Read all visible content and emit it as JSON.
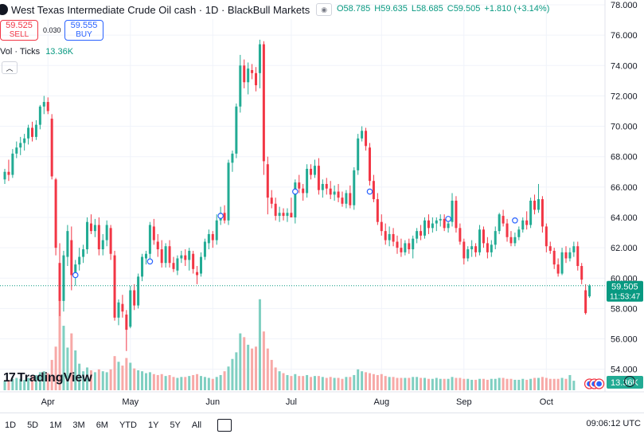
{
  "header": {
    "title": "West Texas Intermediate Crude Oil cash · 1D · BlackBull Markets",
    "ohlc": {
      "open": "O58.785",
      "high": "H59.635",
      "low": "L58.685",
      "close": "C59.505",
      "change": "+1.810 (+3.14%)"
    }
  },
  "trade": {
    "sell_price": "59.525",
    "sell_label": "SELL",
    "spread": "0.030",
    "buy_price": "59.555",
    "buy_label": "BUY"
  },
  "volume_legend": {
    "label": "Vol · Ticks",
    "value": "13.36K"
  },
  "price_badge": {
    "price": "59.505",
    "countdown": "11:53:47"
  },
  "volume_badge": "13.36K",
  "logo_text": "TradingView",
  "ranges": [
    "1D",
    "5D",
    "1M",
    "3M",
    "6M",
    "YTD",
    "1Y",
    "5Y",
    "All"
  ],
  "clock": "09:06:12 UTC",
  "colors": {
    "up": "#22ab94",
    "down": "#f23645",
    "up_vol": "#7fcfc1",
    "down_vol": "#f7a9a7",
    "last_line": "#089981"
  },
  "chart_data": {
    "type": "candlestick",
    "y_ticks": [
      "54.000",
      "56.000",
      "58.000",
      "60.000",
      "62.000",
      "64.000",
      "66.000",
      "68.000",
      "70.000",
      "72.000",
      "74.000",
      "76.000",
      "78.000"
    ],
    "ylim": [
      53.5,
      78.0
    ],
    "x_ticks": [
      {
        "label": "Apr",
        "i": 11
      },
      {
        "label": "May",
        "i": 32
      },
      {
        "label": "Jun",
        "i": 53
      },
      {
        "label": "Jul",
        "i": 73
      },
      {
        "label": "Aug",
        "i": 96
      },
      {
        "label": "Sep",
        "i": 117
      },
      {
        "label": "Oct",
        "i": 138
      }
    ],
    "last_price": 59.505,
    "candles": [
      [
        66.5,
        67.2,
        66.2,
        67.0
      ],
      [
        67.0,
        67.8,
        66.4,
        66.8
      ],
      [
        66.8,
        68.5,
        66.6,
        68.2
      ],
      [
        68.2,
        69.0,
        67.9,
        68.6
      ],
      [
        68.6,
        69.3,
        68.1,
        68.9
      ],
      [
        68.9,
        69.5,
        68.4,
        69.2
      ],
      [
        69.2,
        70.1,
        68.8,
        69.9
      ],
      [
        69.9,
        70.3,
        69.0,
        69.3
      ],
      [
        69.3,
        70.4,
        69.1,
        70.1
      ],
      [
        70.1,
        71.4,
        69.8,
        71.3
      ],
      [
        71.3,
        72.0,
        70.8,
        71.6
      ],
      [
        71.6,
        71.9,
        70.8,
        71.0
      ],
      [
        70.5,
        70.8,
        66.5,
        66.7
      ],
      [
        66.5,
        66.6,
        61.5,
        62.0
      ],
      [
        61.0,
        62.3,
        57.5,
        58.5
      ],
      [
        58.5,
        61.8,
        57.8,
        61.5
      ],
      [
        61.4,
        63.5,
        60.8,
        63.1
      ],
      [
        62.5,
        63.4,
        59.2,
        60.2
      ],
      [
        60.2,
        61.2,
        59.5,
        60.9
      ],
      [
        60.9,
        62.0,
        60.5,
        61.4
      ],
      [
        61.4,
        62.2,
        61.0,
        61.9
      ],
      [
        61.9,
        64.0,
        61.6,
        63.7
      ],
      [
        63.6,
        64.2,
        62.9,
        63.1
      ],
      [
        63.1,
        63.9,
        62.7,
        63.5
      ],
      [
        63.5,
        64.0,
        61.5,
        61.9
      ],
      [
        61.9,
        62.9,
        61.5,
        62.5
      ],
      [
        62.5,
        63.8,
        62.1,
        63.5
      ],
      [
        63.3,
        63.5,
        61.2,
        61.6
      ],
      [
        61.5,
        61.8,
        57.2,
        57.4
      ],
      [
        57.4,
        58.6,
        56.9,
        58.4
      ],
      [
        58.3,
        58.9,
        57.4,
        57.8
      ],
      [
        57.6,
        57.9,
        55.2,
        56.6
      ],
      [
        56.8,
        59.5,
        56.7,
        59.2
      ],
      [
        59.2,
        59.6,
        57.9,
        58.2
      ],
      [
        58.2,
        60.3,
        58.0,
        60.1
      ],
      [
        60.1,
        61.6,
        59.8,
        61.4
      ],
      [
        61.3,
        61.8,
        60.9,
        61.6
      ],
      [
        61.6,
        63.7,
        61.2,
        63.5
      ],
      [
        63.4,
        63.9,
        62.2,
        62.5
      ],
      [
        62.4,
        62.9,
        61.4,
        61.9
      ],
      [
        61.9,
        62.5,
        60.7,
        61.0
      ],
      [
        61.0,
        62.3,
        60.7,
        62.1
      ],
      [
        62.1,
        62.5,
        60.7,
        61.0
      ],
      [
        61.0,
        61.4,
        60.4,
        60.6
      ],
      [
        60.5,
        61.5,
        60.2,
        61.3
      ],
      [
        61.3,
        61.8,
        61.0,
        61.5
      ],
      [
        61.5,
        61.9,
        60.8,
        61.2
      ],
      [
        61.2,
        62.0,
        60.5,
        61.8
      ],
      [
        61.6,
        61.8,
        60.3,
        60.6
      ],
      [
        60.4,
        60.8,
        59.6,
        60.2
      ],
      [
        60.3,
        61.7,
        60.1,
        61.4
      ],
      [
        61.4,
        62.6,
        61.2,
        62.4
      ],
      [
        62.3,
        63.2,
        61.9,
        62.9
      ],
      [
        62.9,
        63.1,
        62.0,
        62.5
      ],
      [
        62.5,
        64.2,
        62.2,
        63.8
      ],
      [
        63.8,
        64.7,
        63.5,
        64.3
      ],
      [
        64.3,
        64.8,
        63.6,
        63.8
      ],
      [
        63.8,
        67.8,
        63.5,
        67.6
      ],
      [
        67.6,
        68.4,
        67.0,
        68.2
      ],
      [
        68.2,
        71.5,
        67.9,
        71.3
      ],
      [
        71.3,
        74.7,
        70.9,
        74.0
      ],
      [
        74.0,
        74.4,
        72.5,
        72.9
      ],
      [
        72.9,
        74.2,
        72.1,
        73.8
      ],
      [
        73.7,
        74.1,
        73.1,
        73.5
      ],
      [
        73.5,
        73.9,
        72.3,
        72.7
      ],
      [
        73.5,
        75.7,
        72.5,
        75.4
      ],
      [
        75.4,
        75.6,
        66.8,
        67.7
      ],
      [
        67.5,
        68.0,
        64.2,
        65.3
      ],
      [
        65.3,
        65.8,
        64.6,
        64.9
      ],
      [
        64.9,
        65.3,
        63.8,
        64.1
      ],
      [
        64.1,
        64.7,
        63.7,
        64.3
      ],
      [
        64.3,
        64.6,
        63.8,
        64.1
      ],
      [
        64.1,
        64.6,
        63.7,
        64.3
      ],
      [
        64.3,
        65.3,
        64.0,
        64.0
      ],
      [
        64.0,
        66.5,
        63.6,
        66.3
      ],
      [
        66.3,
        66.8,
        65.6,
        65.9
      ],
      [
        65.9,
        66.2,
        65.1,
        65.6
      ],
      [
        65.6,
        67.5,
        65.3,
        67.2
      ],
      [
        67.2,
        67.5,
        66.5,
        66.8
      ],
      [
        66.8,
        67.8,
        66.6,
        67.4
      ],
      [
        67.4,
        67.9,
        65.5,
        65.8
      ],
      [
        65.8,
        66.5,
        65.3,
        66.2
      ],
      [
        66.2,
        66.6,
        65.5,
        65.9
      ],
      [
        65.9,
        66.4,
        65.2,
        65.5
      ],
      [
        65.5,
        66.1,
        65.1,
        65.7
      ],
      [
        65.7,
        66.2,
        65.0,
        65.3
      ],
      [
        65.3,
        65.7,
        64.7,
        64.9
      ],
      [
        64.9,
        65.8,
        64.6,
        65.6
      ],
      [
        65.6,
        66.1,
        64.6,
        64.8
      ],
      [
        64.8,
        67.3,
        64.5,
        67.1
      ],
      [
        67.1,
        69.5,
        66.8,
        69.2
      ],
      [
        69.2,
        70.0,
        69.0,
        69.7
      ],
      [
        69.7,
        69.9,
        68.4,
        68.7
      ],
      [
        68.6,
        68.9,
        66.1,
        66.4
      ],
      [
        66.4,
        66.8,
        65.0,
        65.2
      ],
      [
        65.2,
        65.6,
        63.5,
        63.7
      ],
      [
        63.7,
        64.2,
        62.8,
        63.1
      ],
      [
        63.1,
        63.6,
        62.2,
        62.5
      ],
      [
        62.5,
        63.4,
        62.1,
        62.9
      ],
      [
        62.9,
        63.3,
        62.1,
        62.4
      ],
      [
        62.4,
        62.8,
        61.6,
        62.0
      ],
      [
        62.0,
        62.6,
        61.4,
        61.7
      ],
      [
        61.7,
        62.5,
        61.5,
        62.3
      ],
      [
        62.3,
        62.6,
        61.6,
        61.9
      ],
      [
        61.9,
        62.8,
        61.3,
        62.6
      ],
      [
        62.6,
        63.3,
        62.3,
        63.1
      ],
      [
        63.1,
        63.5,
        62.5,
        62.8
      ],
      [
        62.8,
        64.0,
        62.6,
        63.8
      ],
      [
        63.8,
        64.2,
        62.9,
        63.3
      ],
      [
        63.3,
        64.0,
        63.0,
        63.6
      ],
      [
        63.6,
        64.0,
        63.1,
        63.8
      ],
      [
        63.8,
        64.2,
        63.4,
        63.9
      ],
      [
        63.9,
        64.2,
        63.1,
        63.3
      ],
      [
        63.3,
        63.9,
        63.0,
        63.6
      ],
      [
        63.7,
        65.6,
        63.4,
        65.1
      ],
      [
        65.1,
        65.4,
        63.0,
        63.3
      ],
      [
        63.3,
        63.6,
        62.2,
        62.4
      ],
      [
        62.4,
        62.6,
        60.9,
        61.3
      ],
      [
        61.3,
        62.1,
        61.1,
        61.9
      ],
      [
        61.9,
        62.5,
        61.4,
        62.1
      ],
      [
        62.1,
        62.3,
        61.4,
        61.7
      ],
      [
        61.7,
        63.5,
        61.5,
        63.2
      ],
      [
        63.2,
        63.4,
        62.0,
        62.3
      ],
      [
        62.3,
        62.7,
        61.3,
        61.7
      ],
      [
        61.7,
        62.5,
        61.4,
        62.2
      ],
      [
        62.2,
        63.4,
        61.9,
        63.1
      ],
      [
        63.1,
        64.3,
        62.9,
        64.2
      ],
      [
        64.1,
        64.5,
        63.4,
        63.6
      ],
      [
        63.6,
        63.9,
        62.4,
        62.7
      ],
      [
        62.7,
        63.1,
        62.1,
        62.3
      ],
      [
        62.3,
        63.0,
        62.1,
        62.7
      ],
      [
        62.7,
        63.4,
        62.5,
        63.2
      ],
      [
        63.2,
        64.0,
        63.0,
        63.8
      ],
      [
        63.8,
        64.4,
        63.2,
        63.5
      ],
      [
        63.5,
        65.3,
        63.3,
        65.1
      ],
      [
        65.1,
        65.5,
        64.2,
        64.5
      ],
      [
        64.5,
        66.2,
        64.3,
        65.2
      ],
      [
        65.2,
        65.4,
        63.0,
        63.4
      ],
      [
        63.4,
        63.6,
        61.7,
        62.1
      ],
      [
        62.1,
        62.4,
        61.6,
        61.8
      ],
      [
        61.8,
        62.0,
        60.6,
        60.9
      ],
      [
        60.9,
        61.3,
        60.1,
        60.3
      ],
      [
        60.3,
        62.0,
        60.2,
        61.7
      ],
      [
        61.7,
        62.1,
        61.0,
        61.3
      ],
      [
        61.3,
        62.0,
        61.1,
        61.7
      ],
      [
        61.7,
        62.4,
        61.4,
        62.1
      ],
      [
        62.1,
        62.4,
        60.5,
        60.8
      ],
      [
        60.8,
        61.0,
        59.6,
        59.9
      ],
      [
        59.2,
        59.6,
        57.6,
        57.7
      ],
      [
        58.8,
        59.6,
        58.7,
        59.5
      ]
    ],
    "volumes": [
      1.0,
      1.1,
      1.2,
      1.3,
      1.2,
      1.1,
      1.3,
      1.5,
      1.6,
      1.9,
      2.0,
      1.8,
      3.2,
      4.6,
      9.5,
      6.8,
      4.5,
      6.0,
      4.2,
      2.8,
      2.0,
      2.4,
      2.1,
      1.9,
      2.2,
      2.0,
      1.9,
      2.2,
      3.6,
      3.0,
      2.6,
      3.4,
      2.9,
      2.3,
      2.1,
      2.0,
      1.8,
      1.9,
      1.7,
      1.6,
      1.7,
      1.5,
      1.6,
      1.4,
      1.3,
      1.4,
      1.4,
      1.5,
      1.6,
      1.7,
      1.5,
      1.4,
      1.3,
      1.2,
      1.4,
      1.6,
      2.0,
      2.5,
      3.3,
      4.0,
      6.0,
      5.6,
      4.8,
      4.4,
      4.6,
      9.6,
      6.2,
      4.4,
      3.2,
      2.4,
      2.0,
      1.8,
      1.6,
      1.5,
      1.7,
      1.5,
      1.5,
      1.6,
      1.4,
      1.5,
      1.5,
      1.4,
      1.3,
      1.4,
      1.3,
      1.3,
      1.2,
      1.4,
      1.4,
      1.6,
      2.2,
      2.0,
      1.9,
      1.8,
      1.7,
      1.6,
      1.7,
      1.5,
      1.4,
      1.4,
      1.3,
      1.3,
      1.3,
      1.3,
      1.4,
      1.4,
      1.3,
      1.3,
      1.2,
      1.2,
      1.3,
      1.2,
      1.2,
      1.2,
      1.4,
      1.3,
      1.3,
      1.2,
      1.2,
      1.1,
      1.1,
      1.2,
      1.2,
      1.1,
      1.2,
      1.2,
      1.3,
      1.3,
      1.2,
      1.2,
      1.1,
      1.1,
      1.2,
      1.1,
      1.2,
      1.3,
      1.3,
      1.4,
      1.3,
      1.2,
      1.2,
      1.2,
      1.3,
      1.2,
      1.6,
      1.0
    ],
    "volume_ylim": [
      0,
      10.0
    ],
    "markers": [
      {
        "i": 18,
        "price": 60.2
      },
      {
        "i": 37,
        "price": 61.1
      },
      {
        "i": 55,
        "price": 64.1
      },
      {
        "i": 74,
        "price": 65.7
      },
      {
        "i": 93,
        "price": 65.7
      },
      {
        "i": 113,
        "price": 63.9
      },
      {
        "i": 130,
        "price": 63.8
      }
    ]
  }
}
